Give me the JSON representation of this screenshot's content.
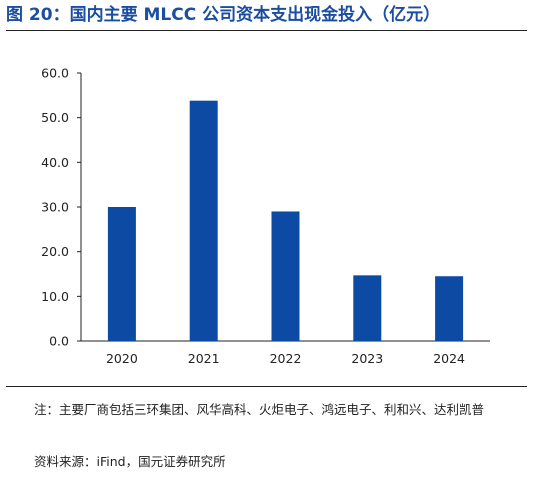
{
  "figure": {
    "title": "图 20：国内主要 MLCC 公司资本支出现金投入（亿元）",
    "note": "注：主要厂商包括三环集团、风华高科、火炬电子、鸿远电子、利和兴、达利凯普",
    "source": "资料来源：iFind，国元证券研究所"
  },
  "colors": {
    "bar": "#0d4aa3",
    "title": "#1b4ea0",
    "axis": "#222222"
  },
  "chart_data": {
    "type": "bar",
    "categories": [
      "2020",
      "2021",
      "2022",
      "2023",
      "2024"
    ],
    "values": [
      30.0,
      53.8,
      29.0,
      14.7,
      14.5
    ],
    "ylim": [
      0,
      60
    ],
    "yticks": [
      "0.0",
      "10.0",
      "20.0",
      "30.0",
      "40.0",
      "50.0",
      "60.0"
    ],
    "grid": false,
    "legend": "none"
  }
}
